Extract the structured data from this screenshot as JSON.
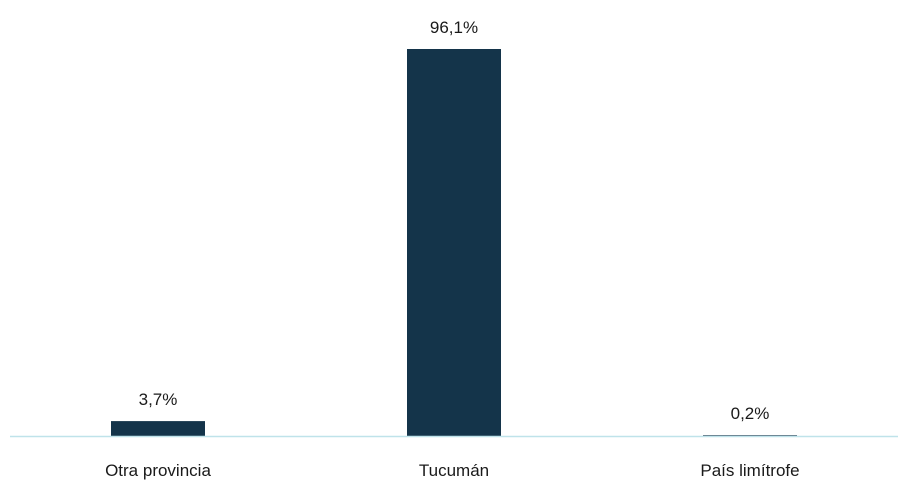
{
  "chart_data": {
    "type": "bar",
    "categories": [
      "Otra provincia",
      "Tucumán",
      "País limítrofe"
    ],
    "values": [
      3.7,
      96.1,
      0.2
    ],
    "data_labels": [
      "3,7%",
      "96,1%",
      "0,2%"
    ],
    "title": "",
    "xlabel": "",
    "ylabel": "",
    "ylim": [
      0,
      100
    ],
    "grid": false,
    "legend": "none",
    "colors": {
      "bar": "#14344a",
      "axis": "#bfe3ea",
      "text": "#1a1a1a"
    }
  }
}
